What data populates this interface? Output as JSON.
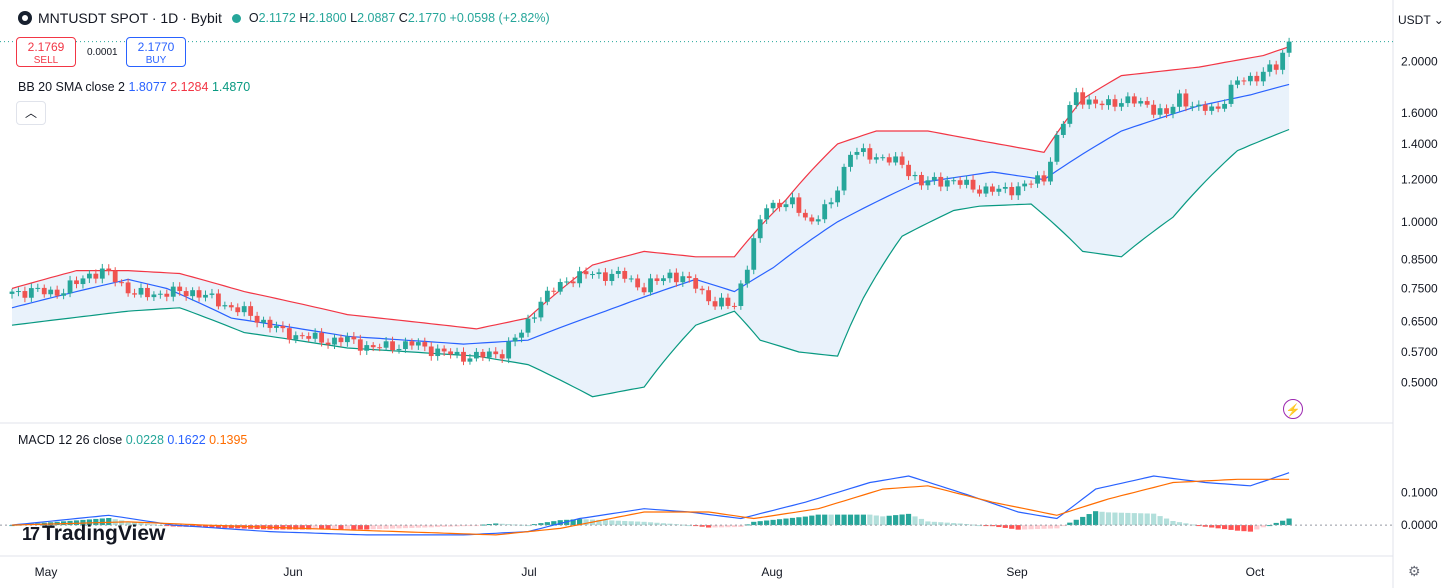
{
  "header": {
    "symbol_title": "MNTUSDT SPOT · 1D · Bybit",
    "ohlc": {
      "o_label": "O",
      "o": "2.1172",
      "h_label": "H",
      "h": "2.1800",
      "l_label": "L",
      "l": "2.0887",
      "c_label": "C",
      "c": "2.1770",
      "change": "+0.0598 (+2.82%)"
    }
  },
  "trade": {
    "sell_price": "2.1769",
    "sell_label": "SELL",
    "spread": "0.0001",
    "buy_price": "2.1770",
    "buy_label": "BUY"
  },
  "indicators": {
    "bb": {
      "label": "BB 20 SMA close 2",
      "basis": "1.8077",
      "upper": "2.1284",
      "lower": "1.4870"
    },
    "macd": {
      "label": "MACD 12 26 close",
      "hist": "0.0228",
      "macd": "0.1622",
      "signal": "0.1395"
    }
  },
  "unit_button": "USDT",
  "branding": "TradingView",
  "colors": {
    "up": "#26a69a",
    "down": "#ef5350",
    "bb_basis": "#2962ff",
    "bb_upper": "#f23645",
    "bb_lower": "#089981",
    "bb_fill": "#e9f2fb",
    "macd": "#2962ff",
    "signal": "#ff6d00"
  },
  "chart_data": [
    {
      "type": "candlestick",
      "title": "MNTUSDT SPOT · 1D · Bybit",
      "y_scale": "log",
      "ylim": [
        0.44,
        2.25
      ],
      "y_ticks": [
        "2.0000",
        "1.6000",
        "1.4000",
        "1.2000",
        "1.0000",
        "0.8500",
        "0.7500",
        "0.6500",
        "0.5700",
        "0.5000"
      ],
      "x_ticks": [
        "May",
        "Jun",
        "Jul",
        "Aug",
        "Sep",
        "Oct"
      ],
      "anchors": [
        [
          0,
          0.74
        ],
        [
          8,
          0.74
        ],
        [
          12,
          0.8
        ],
        [
          15,
          0.8
        ],
        [
          19,
          0.73
        ],
        [
          28,
          0.74
        ],
        [
          33,
          0.7
        ],
        [
          38,
          0.66
        ],
        [
          42,
          0.62
        ],
        [
          48,
          0.6
        ],
        [
          52,
          0.6
        ],
        [
          56,
          0.58
        ],
        [
          62,
          0.59
        ],
        [
          69,
          0.56
        ],
        [
          73,
          0.56
        ],
        [
          76,
          0.57
        ],
        [
          79,
          0.62
        ],
        [
          82,
          0.71
        ],
        [
          86,
          0.78
        ],
        [
          90,
          0.8
        ],
        [
          95,
          0.79
        ],
        [
          98,
          0.75
        ],
        [
          102,
          0.8
        ],
        [
          106,
          0.76
        ],
        [
          109,
          0.7
        ],
        [
          112,
          0.7
        ],
        [
          114,
          0.83
        ],
        [
          117,
          1.08
        ],
        [
          121,
          1.08
        ],
        [
          124,
          1.0
        ],
        [
          127,
          1.08
        ],
        [
          130,
          1.35
        ],
        [
          134,
          1.33
        ],
        [
          138,
          1.28
        ],
        [
          141,
          1.18
        ],
        [
          145,
          1.2
        ],
        [
          149,
          1.16
        ],
        [
          153,
          1.14
        ],
        [
          157,
          1.17
        ],
        [
          160,
          1.21
        ],
        [
          162,
          1.43
        ],
        [
          165,
          1.74
        ],
        [
          168,
          1.65
        ],
        [
          172,
          1.69
        ],
        [
          176,
          1.66
        ],
        [
          179,
          1.58
        ],
        [
          181,
          1.72
        ],
        [
          184,
          1.62
        ],
        [
          187,
          1.64
        ],
        [
          190,
          1.83
        ],
        [
          193,
          1.88
        ],
        [
          196,
          1.95
        ],
        [
          198,
          2.18
        ]
      ],
      "basis": [
        [
          0,
          0.69
        ],
        [
          18,
          0.78
        ],
        [
          24,
          0.75
        ],
        [
          34,
          0.66
        ],
        [
          52,
          0.61
        ],
        [
          70,
          0.59
        ],
        [
          80,
          0.6
        ],
        [
          92,
          0.68
        ],
        [
          106,
          0.78
        ],
        [
          112,
          0.74
        ],
        [
          118,
          0.82
        ],
        [
          128,
          1.0
        ],
        [
          140,
          1.18
        ],
        [
          152,
          1.24
        ],
        [
          160,
          1.2
        ],
        [
          172,
          1.48
        ],
        [
          184,
          1.65
        ],
        [
          192,
          1.73
        ],
        [
          198,
          1.81
        ]
      ],
      "upper": [
        [
          0,
          0.75
        ],
        [
          10,
          0.81
        ],
        [
          18,
          0.81
        ],
        [
          26,
          0.8
        ],
        [
          36,
          0.74
        ],
        [
          52,
          0.67
        ],
        [
          72,
          0.63
        ],
        [
          80,
          0.66
        ],
        [
          90,
          0.83
        ],
        [
          98,
          0.88
        ],
        [
          106,
          0.86
        ],
        [
          112,
          0.86
        ],
        [
          120,
          1.1
        ],
        [
          128,
          1.4
        ],
        [
          134,
          1.48
        ],
        [
          142,
          1.48
        ],
        [
          150,
          1.42
        ],
        [
          160,
          1.35
        ],
        [
          166,
          1.7
        ],
        [
          172,
          1.88
        ],
        [
          184,
          1.95
        ],
        [
          194,
          2.05
        ],
        [
          198,
          2.13
        ]
      ],
      "lower": [
        [
          0,
          0.64
        ],
        [
          18,
          0.68
        ],
        [
          26,
          0.69
        ],
        [
          36,
          0.62
        ],
        [
          52,
          0.58
        ],
        [
          72,
          0.56
        ],
        [
          80,
          0.54
        ],
        [
          90,
          0.47
        ],
        [
          98,
          0.49
        ],
        [
          106,
          0.64
        ],
        [
          112,
          0.68
        ],
        [
          116,
          0.6
        ],
        [
          122,
          0.57
        ],
        [
          128,
          0.56
        ],
        [
          132,
          0.72
        ],
        [
          138,
          0.94
        ],
        [
          146,
          1.05
        ],
        [
          150,
          1.07
        ],
        [
          158,
          1.08
        ],
        [
          166,
          0.88
        ],
        [
          172,
          0.86
        ],
        [
          180,
          1.02
        ],
        [
          190,
          1.36
        ],
        [
          198,
          1.49
        ]
      ]
    },
    {
      "type": "macd",
      "title": "MACD 12 26 close",
      "ylim": [
        -0.07,
        0.26
      ],
      "y_ticks": [
        "0.1000",
        "0.0000"
      ],
      "macd_line": [
        [
          0,
          0.0
        ],
        [
          15,
          0.03
        ],
        [
          25,
          0.0
        ],
        [
          40,
          -0.02
        ],
        [
          55,
          -0.03
        ],
        [
          70,
          -0.03
        ],
        [
          80,
          -0.02
        ],
        [
          88,
          0.02
        ],
        [
          98,
          0.05
        ],
        [
          105,
          0.04
        ],
        [
          113,
          0.02
        ],
        [
          123,
          0.07
        ],
        [
          133,
          0.13
        ],
        [
          139,
          0.15
        ],
        [
          147,
          0.1
        ],
        [
          156,
          0.04
        ],
        [
          162,
          0.02
        ],
        [
          168,
          0.11
        ],
        [
          177,
          0.15
        ],
        [
          185,
          0.13
        ],
        [
          192,
          0.12
        ],
        [
          198,
          0.16
        ]
      ],
      "signal_line": [
        [
          0,
          0.0
        ],
        [
          18,
          0.01
        ],
        [
          30,
          0.0
        ],
        [
          45,
          -0.01
        ],
        [
          60,
          -0.02
        ],
        [
          75,
          -0.03
        ],
        [
          85,
          -0.01
        ],
        [
          98,
          0.04
        ],
        [
          108,
          0.04
        ],
        [
          115,
          0.02
        ],
        [
          125,
          0.05
        ],
        [
          135,
          0.11
        ],
        [
          142,
          0.12
        ],
        [
          152,
          0.07
        ],
        [
          162,
          0.03
        ],
        [
          170,
          0.08
        ],
        [
          180,
          0.13
        ],
        [
          190,
          0.14
        ],
        [
          198,
          0.14
        ]
      ]
    }
  ]
}
